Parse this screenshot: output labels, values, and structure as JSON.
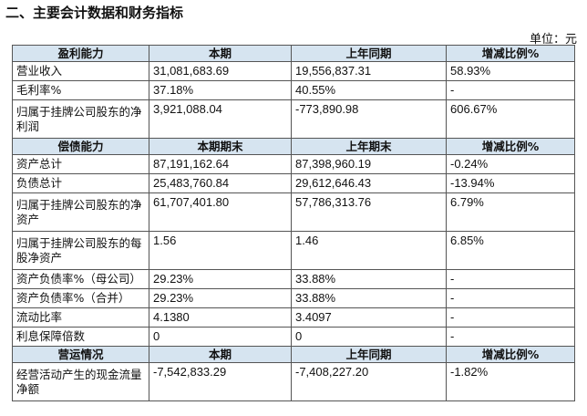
{
  "heading": "二、主要会计数据和财务指标",
  "unit": "单位：元",
  "sections": [
    {
      "header": [
        "盈利能力",
        "本期",
        "上年同期",
        "增减比例%"
      ],
      "rows": [
        [
          "营业收入",
          "31,081,683.69",
          "19,556,837.31",
          "58.93%"
        ],
        [
          "毛利率%",
          "37.18%",
          "40.55%",
          "-"
        ],
        [
          "归属于挂牌公司股东的净利润",
          "3,921,088.04",
          "-773,890.98",
          "606.67%"
        ]
      ]
    },
    {
      "header": [
        "偿债能力",
        "本期期末",
        "上年期末",
        "增减比例%"
      ],
      "rows": [
        [
          "资产总计",
          "87,191,162.64",
          "87,398,960.19",
          "-0.24%"
        ],
        [
          "负债总计",
          "25,483,760.84",
          "29,612,646.43",
          "-13.94%"
        ],
        [
          "归属于挂牌公司股东的净资产",
          "61,707,401.80",
          "57,786,313.76",
          "6.79%"
        ],
        [
          "归属于挂牌公司股东的每股净资产",
          "1.56",
          "1.46",
          "6.85%"
        ],
        [
          "资产负债率%（母公司）",
          "29.23%",
          "33.88%",
          "-"
        ],
        [
          "资产负债率%（合并）",
          "29.23%",
          "33.88%",
          "-"
        ],
        [
          "流动比率",
          "4.1380",
          "3.4097",
          "-"
        ],
        [
          "利息保障倍数",
          "0",
          "0",
          "-"
        ]
      ]
    },
    {
      "header": [
        "营运情况",
        "本期",
        "上年同期",
        "增减比例%"
      ],
      "rows": [
        [
          "经营活动产生的现金流量净额",
          "-7,542,833.29",
          "-7,408,227.20",
          "-1.82%"
        ]
      ]
    }
  ]
}
